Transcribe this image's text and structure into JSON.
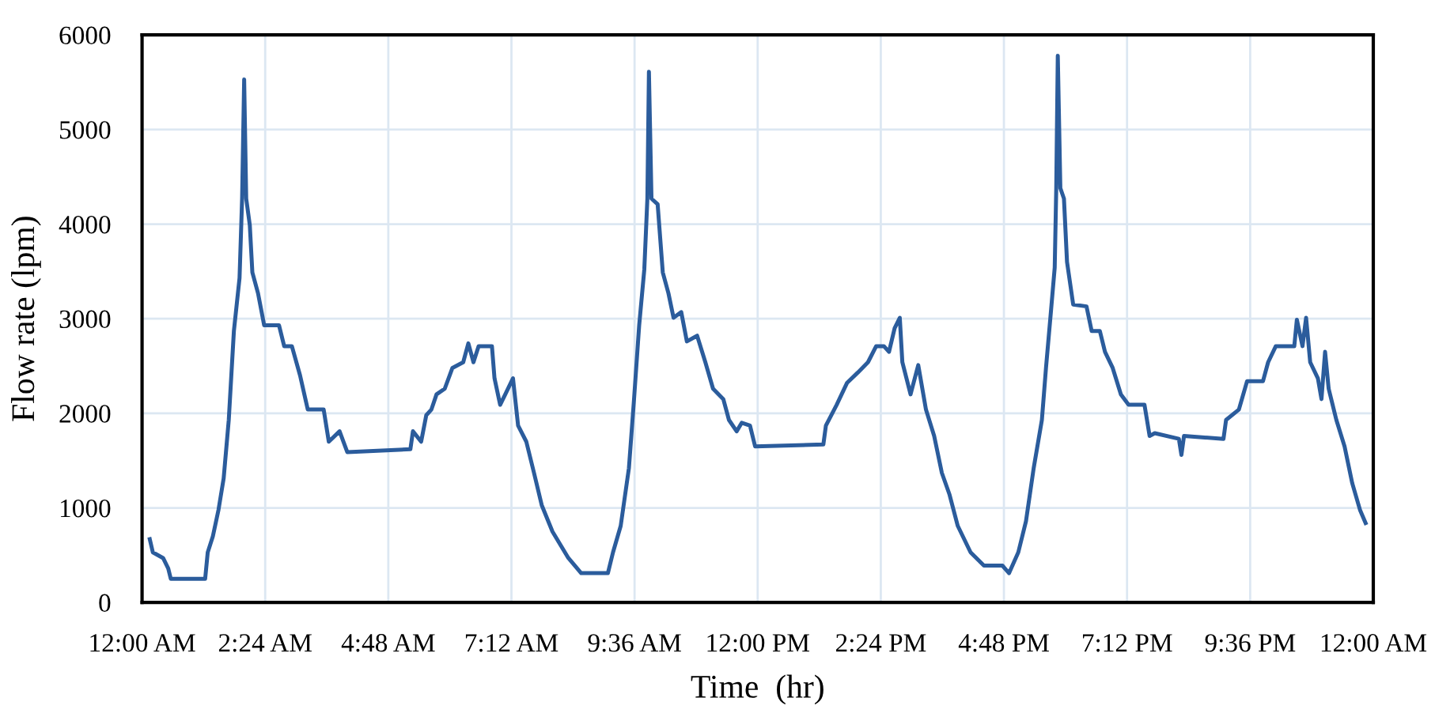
{
  "chart_data": {
    "type": "line",
    "xlabel": "Time  (hr)",
    "ylabel": "Flow rate (lpm)",
    "xlim": [
      0,
      24
    ],
    "ylim": [
      0,
      6000
    ],
    "xticks": [
      {
        "value": 0,
        "label": "12:00 AM"
      },
      {
        "value": 2.4,
        "label": "2:24 AM"
      },
      {
        "value": 4.8,
        "label": "4:48 AM"
      },
      {
        "value": 7.2,
        "label": "7:12 AM"
      },
      {
        "value": 9.6,
        "label": "9:36 AM"
      },
      {
        "value": 12,
        "label": "12:00 PM"
      },
      {
        "value": 14.4,
        "label": "2:24 PM"
      },
      {
        "value": 16.8,
        "label": "4:48 PM"
      },
      {
        "value": 19.2,
        "label": "7:12 PM"
      },
      {
        "value": 21.6,
        "label": "9:36 PM"
      },
      {
        "value": 24,
        "label": "12:00 AM"
      }
    ],
    "yticks": [
      0,
      1000,
      2000,
      3000,
      4000,
      5000,
      6000
    ],
    "grid": true,
    "marker": "none",
    "line_style": "solid",
    "series": [
      {
        "color": "#2b5c9c",
        "x": [
          0.15,
          0.21,
          0.41,
          0.51,
          0.56,
          1.23,
          1.28,
          1.38,
          1.49,
          1.59,
          1.69,
          1.79,
          1.9,
          1.95,
          1.99,
          2.03,
          2.1,
          2.15,
          2.26,
          2.38,
          2.67,
          2.77,
          2.92,
          3.08,
          3.23,
          3.54,
          3.64,
          3.85,
          4.0,
          5.23,
          5.28,
          5.44,
          5.54,
          5.64,
          5.74,
          5.9,
          6.05,
          6.26,
          6.36,
          6.46,
          6.56,
          6.82,
          6.87,
          6.98,
          7.08,
          7.23,
          7.33,
          7.49,
          7.64,
          7.79,
          8.0,
          8.31,
          8.56,
          9.08,
          9.18,
          9.33,
          9.49,
          9.59,
          9.69,
          9.79,
          9.85,
          9.88,
          9.93,
          10.05,
          10.15,
          10.26,
          10.36,
          10.51,
          10.62,
          10.82,
          10.98,
          11.13,
          11.33,
          11.44,
          11.59,
          11.69,
          11.85,
          11.95,
          13.28,
          13.33,
          13.54,
          13.74,
          13.95,
          14.15,
          14.31,
          14.46,
          14.56,
          14.67,
          14.77,
          14.82,
          14.98,
          15.13,
          15.28,
          15.44,
          15.59,
          15.74,
          15.9,
          16.15,
          16.41,
          16.77,
          16.9,
          17.08,
          17.23,
          17.38,
          17.54,
          17.62,
          17.72,
          17.79,
          17.82,
          17.85,
          17.9,
          17.97,
          18.03,
          18.15,
          18.41,
          18.51,
          18.67,
          18.77,
          18.92,
          19.08,
          19.23,
          19.54,
          19.64,
          19.74,
          20.21,
          20.26,
          20.31,
          21.08,
          21.13,
          21.38,
          21.54,
          21.85,
          21.95,
          22.1,
          22.46,
          22.51,
          22.62,
          22.69,
          22.77,
          22.92,
          22.99,
          23.06,
          23.13,
          23.28,
          23.44,
          23.59,
          23.74,
          23.85
        ],
        "values": [
          670,
          530,
          470,
          360,
          250,
          250,
          530,
          700,
          980,
          1310,
          1930,
          2870,
          3430,
          4270,
          5530,
          4270,
          3990,
          3490,
          3270,
          2930,
          2930,
          2710,
          2710,
          2400,
          2040,
          2040,
          1700,
          1810,
          1590,
          1620,
          1810,
          1700,
          1980,
          2040,
          2200,
          2260,
          2480,
          2540,
          2740,
          2540,
          2710,
          2710,
          2370,
          2090,
          2200,
          2370,
          1870,
          1700,
          1370,
          1030,
          750,
          470,
          310,
          310,
          530,
          810,
          1420,
          2150,
          2930,
          3520,
          4270,
          5610,
          4270,
          4210,
          3490,
          3270,
          3010,
          3070,
          2760,
          2820,
          2540,
          2260,
          2150,
          1930,
          1810,
          1900,
          1870,
          1650,
          1670,
          1870,
          2090,
          2320,
          2430,
          2540,
          2710,
          2710,
          2650,
          2900,
          3010,
          2540,
          2200,
          2510,
          2040,
          1760,
          1370,
          1140,
          810,
          530,
          390,
          390,
          310,
          530,
          860,
          1420,
          1930,
          2480,
          3100,
          3540,
          4380,
          5780,
          4380,
          4270,
          3600,
          3150,
          3130,
          2870,
          2870,
          2650,
          2480,
          2200,
          2090,
          2090,
          1760,
          1790,
          1730,
          1560,
          1760,
          1730,
          1930,
          2040,
          2340,
          2340,
          2540,
          2710,
          2710,
          2990,
          2710,
          3010,
          2540,
          2370,
          2150,
          2650,
          2260,
          1930,
          1650,
          1260,
          980,
          840
        ]
      }
    ]
  }
}
